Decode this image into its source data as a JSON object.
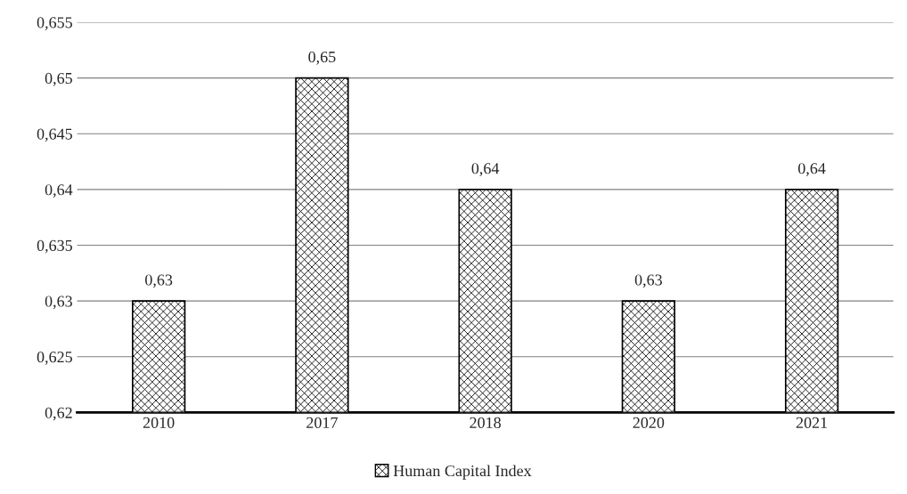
{
  "chart_data": {
    "type": "bar",
    "categories": [
      "2010",
      "2017",
      "2018",
      "2020",
      "2021"
    ],
    "series": [
      {
        "name": "Human Capital Index",
        "color": "#000000",
        "values": [
          0.63,
          0.65,
          0.64,
          0.63,
          0.64
        ],
        "value_labels": [
          "0,63",
          "0,65",
          "0,64",
          "0,63",
          "0,64"
        ]
      }
    ],
    "ylim": [
      0.62,
      0.655
    ],
    "yticks": [
      {
        "value": 0.62,
        "label": "0,62"
      },
      {
        "value": 0.625,
        "label": "0,625"
      },
      {
        "value": 0.63,
        "label": "0,63"
      },
      {
        "value": 0.635,
        "label": "0,635"
      },
      {
        "value": 0.64,
        "label": "0,64"
      },
      {
        "value": 0.645,
        "label": "0,645"
      },
      {
        "value": 0.65,
        "label": "0,65"
      },
      {
        "value": 0.655,
        "label": "0,655"
      }
    ],
    "grid": "y",
    "legend": "bottom"
  }
}
